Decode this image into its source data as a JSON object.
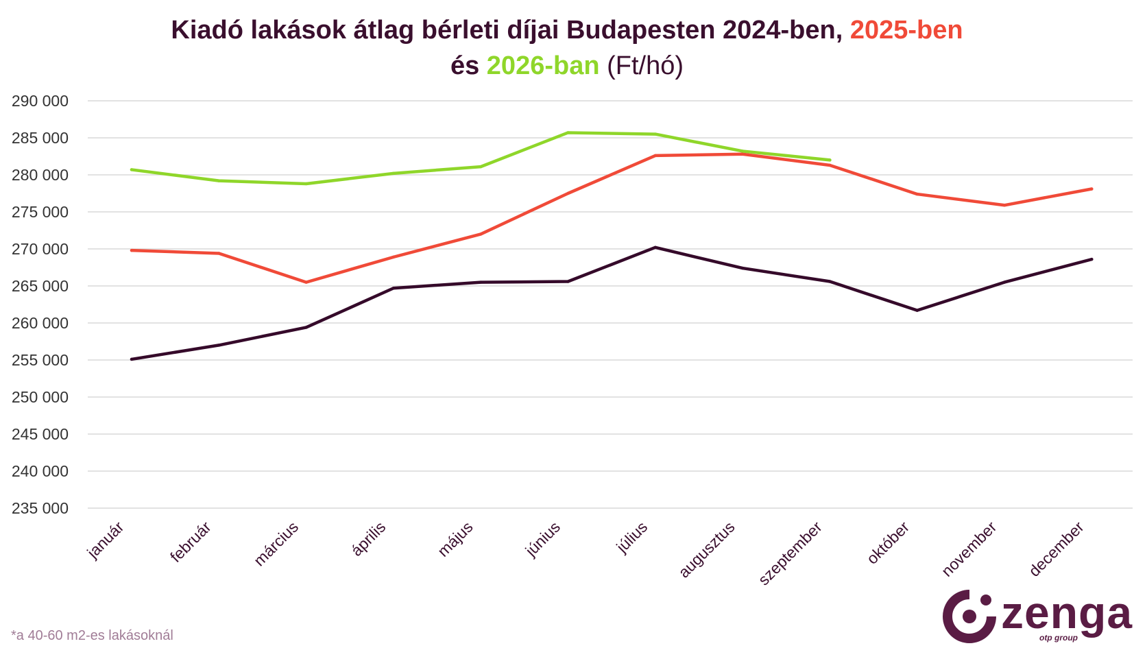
{
  "title": {
    "line1_main": "Kiadó lakások átlag bérleti díjai Budapesten 2024-ben, ",
    "line1_highlight": "2025-ben",
    "line2_prefix": "és ",
    "line2_highlight": "2026-ban",
    "line2_suffix": " (Ft/hó)"
  },
  "colors": {
    "title": "#3a0f2e",
    "series_2024": "#350a2a",
    "series_2025": "#f04a38",
    "series_2026": "#8fd62a",
    "grid": "#d9d9d9"
  },
  "chart_data": {
    "type": "line",
    "categories": [
      "január",
      "február",
      "március",
      "április",
      "május",
      "június",
      "július",
      "augusztus",
      "szeptember",
      "október",
      "november",
      "december"
    ],
    "series": [
      {
        "year": "2024",
        "values": [
          255100,
          257000,
          259400,
          264700,
          265500,
          265600,
          270200,
          267400,
          265600,
          261700,
          265500,
          268600
        ]
      },
      {
        "year": "2025",
        "values": [
          269800,
          269400,
          265500,
          268900,
          272000,
          277500,
          282600,
          282800,
          281300,
          277400,
          275900,
          278100
        ]
      },
      {
        "year": "2026",
        "values": [
          280700,
          279200,
          278800,
          280200,
          281100,
          285700,
          285500,
          283200,
          282000,
          null,
          null,
          null
        ]
      }
    ],
    "ylim": [
      235000,
      290000
    ],
    "yticks": [
      "235 000",
      "240 000",
      "245 000",
      "250 000",
      "255 000",
      "260 000",
      "265 000",
      "270 000",
      "275 000",
      "280 000",
      "285 000",
      "290 000"
    ],
    "grid": true,
    "legend": "none"
  },
  "footnote": "*a 40-60 m2-es lakásoknál",
  "logo": {
    "word": "zenga",
    "sub": "otp group"
  }
}
